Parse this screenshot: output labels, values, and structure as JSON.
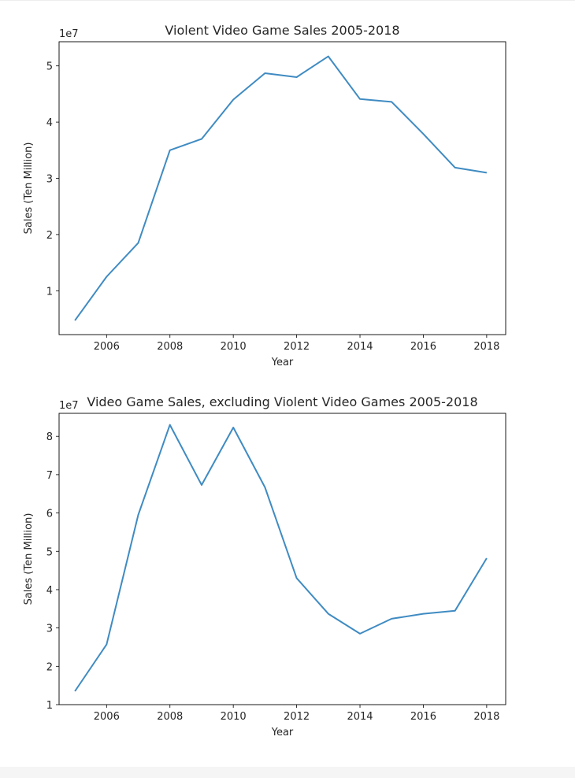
{
  "chart_data": [
    {
      "type": "line",
      "title": "Violent Video Game Sales 2005-2018",
      "xlabel": "Year",
      "ylabel": "Sales (Ten Million)",
      "offset_label": "1e7",
      "xlim": [
        2004.5,
        2018.6
      ],
      "ylim": [
        0.22,
        5.43
      ],
      "xticks": [
        2006,
        2008,
        2010,
        2012,
        2014,
        2016,
        2018
      ],
      "yticks": [
        1,
        2,
        3,
        4,
        5
      ],
      "grid": false,
      "series": [
        {
          "color": "#3f8bc2",
          "x": [
            2005,
            2006,
            2007,
            2008,
            2009,
            2010,
            2011,
            2012,
            2013,
            2014,
            2015,
            2016,
            2017,
            2018
          ],
          "y": [
            0.47,
            1.25,
            1.85,
            3.5,
            3.7,
            4.4,
            4.87,
            4.8,
            5.17,
            4.41,
            4.36,
            3.79,
            3.19,
            3.1
          ]
        }
      ]
    },
    {
      "type": "line",
      "title": "Video Game Sales, excluding Violent Video Games 2005-2018",
      "xlabel": "Year",
      "ylabel": "Sales (Ten Million)",
      "offset_label": "1e7",
      "xlim": [
        2004.5,
        2018.6
      ],
      "ylim": [
        1.0,
        8.6
      ],
      "xticks": [
        2006,
        2008,
        2010,
        2012,
        2014,
        2016,
        2018
      ],
      "yticks": [
        1,
        2,
        3,
        4,
        5,
        6,
        7,
        8
      ],
      "grid": false,
      "series": [
        {
          "color": "#3f8bc2",
          "x": [
            2005,
            2006,
            2007,
            2008,
            2009,
            2010,
            2011,
            2012,
            2013,
            2014,
            2015,
            2016,
            2017,
            2018
          ],
          "y": [
            1.35,
            2.57,
            5.95,
            8.3,
            6.73,
            8.23,
            6.67,
            4.3,
            3.37,
            2.85,
            3.24,
            3.37,
            3.45,
            4.82
          ]
        }
      ]
    }
  ]
}
